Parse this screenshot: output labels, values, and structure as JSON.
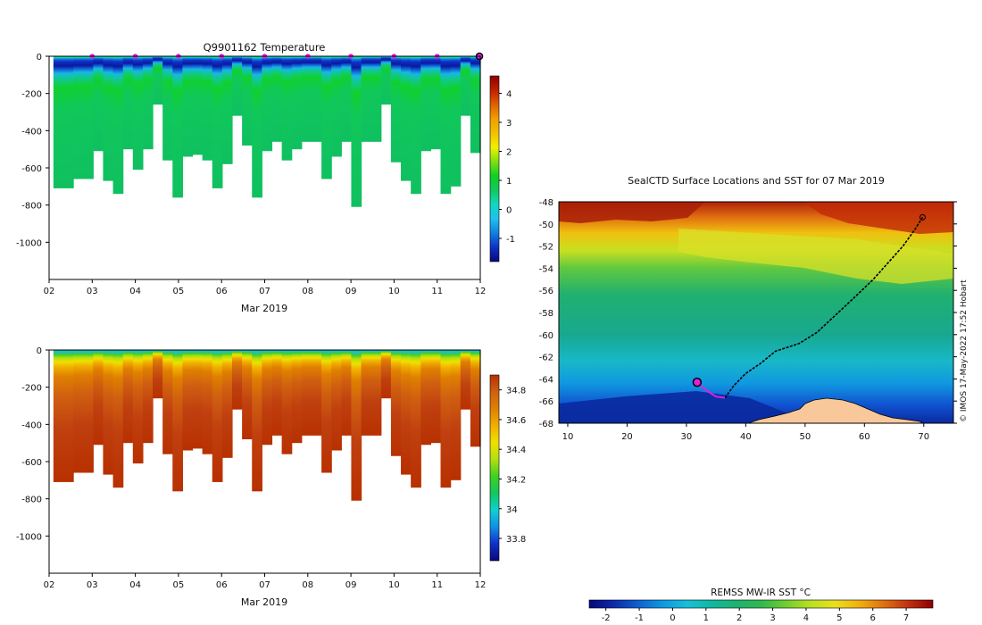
{
  "colors": {
    "temp_scale": [
      "#08087a",
      "#1030c8",
      "#1080e0",
      "#20c0f0",
      "#10d8c0",
      "#10c860",
      "#10d020",
      "#80e010",
      "#f0f000",
      "#f0c000",
      "#f0a000",
      "#e06000",
      "#c02000",
      "#900000"
    ],
    "salinity_scale": [
      "#08087a",
      "#1030c8",
      "#1090e8",
      "#10d0d0",
      "#10c860",
      "#40d020",
      "#b0e010",
      "#f0e000",
      "#f0b000",
      "#e08000",
      "#d06010",
      "#b83000"
    ],
    "sst_scale": [
      "#08087a",
      "#0a2aa8",
      "#1060d0",
      "#1098e0",
      "#18c0d8",
      "#10b8a0",
      "#20b070",
      "#30b850",
      "#70cc30",
      "#b8e020",
      "#e8e020",
      "#f0b010",
      "#e07010",
      "#c03010",
      "#8c0000"
    ],
    "track": "#000000",
    "marker": "#e020e0",
    "land": "#f8c89a"
  },
  "chart_data": [
    {
      "type": "heatmap",
      "name": "temperature-section",
      "title": "Q9901162  Temperature",
      "xlabel": "Mar 2019",
      "ylabel": "",
      "x_ticks": [
        "02",
        "03",
        "04",
        "05",
        "06",
        "07",
        "08",
        "09",
        "10",
        "11",
        "12"
      ],
      "y_ticks": [
        0,
        -200,
        -400,
        -600,
        -800,
        -1000
      ],
      "xlim": [
        2,
        12
      ],
      "ylim": [
        -1200,
        0
      ],
      "colorbar": {
        "ticks": [
          -1,
          0,
          1,
          2,
          3,
          4
        ],
        "range": [
          -1.8,
          4.6
        ]
      },
      "surface_markers_days": [
        3,
        4,
        5,
        6,
        7,
        8,
        9,
        10,
        11
      ],
      "current_marker_day": 12,
      "profile_max_depth": [
        710,
        710,
        660,
        660,
        510,
        670,
        740,
        500,
        610,
        500,
        260,
        560,
        760,
        540,
        530,
        560,
        710,
        580,
        320,
        480,
        760,
        510,
        460,
        560,
        500,
        460,
        460,
        660,
        540,
        460,
        810,
        460,
        460,
        260,
        570,
        670,
        740,
        510,
        500,
        740,
        700,
        320,
        520
      ]
    },
    {
      "type": "heatmap",
      "name": "salinity-section",
      "title": "",
      "xlabel": "Mar 2019",
      "ylabel": "",
      "x_ticks": [
        "02",
        "03",
        "04",
        "05",
        "06",
        "07",
        "08",
        "09",
        "10",
        "11",
        "12"
      ],
      "y_ticks": [
        0,
        -200,
        -400,
        -600,
        -800,
        -1000
      ],
      "xlim": [
        2,
        12
      ],
      "ylim": [
        -1200,
        0
      ],
      "colorbar": {
        "ticks": [
          33.8,
          34,
          34.2,
          34.4,
          34.6,
          34.8
        ],
        "tick_labels": [
          "33.8",
          "34",
          "34.2",
          "34.4",
          "34.6",
          "34.8"
        ],
        "range": [
          33.65,
          34.9
        ]
      }
    },
    {
      "type": "map",
      "name": "sst-map",
      "title": "SealCTD Surface Locations and SST for 07 Mar 2019",
      "x_ticks": [
        10,
        20,
        30,
        40,
        50,
        60,
        70
      ],
      "y_ticks": [
        -48,
        -50,
        -52,
        -54,
        -56,
        -58,
        -60,
        -62,
        -64,
        -66,
        -68
      ],
      "xlim": [
        8.5,
        75
      ],
      "ylim": [
        -68,
        -48
      ],
      "colorbar_label": "REMSS MW-IR SST °C",
      "colorbar_ticks": [
        -2,
        -1,
        0,
        1,
        2,
        3,
        4,
        5,
        6,
        7
      ],
      "colorbar_range": [
        -2.5,
        7.8
      ],
      "credit": "© IMOS 17-May-2022 17:52 Hobart",
      "track": [
        [
          69.8,
          -49.4
        ],
        [
          68.5,
          -50.5
        ],
        [
          66.5,
          -52
        ],
        [
          64,
          -53.5
        ],
        [
          61.5,
          -55
        ],
        [
          58,
          -56.8
        ],
        [
          55,
          -58.3
        ],
        [
          52,
          -59.8
        ],
        [
          49,
          -60.8
        ],
        [
          45,
          -61.5
        ],
        [
          42.5,
          -62.6
        ],
        [
          40,
          -63.5
        ],
        [
          38,
          -64.6
        ],
        [
          36.5,
          -65.7
        ]
      ],
      "recent_track": [
        [
          36.5,
          -65.7
        ],
        [
          35,
          -65.6
        ],
        [
          33.5,
          -65.1
        ],
        [
          32.2,
          -64.5
        ],
        [
          31.8,
          -64.3
        ]
      ],
      "current_position": [
        31.8,
        -64.3
      ]
    }
  ]
}
